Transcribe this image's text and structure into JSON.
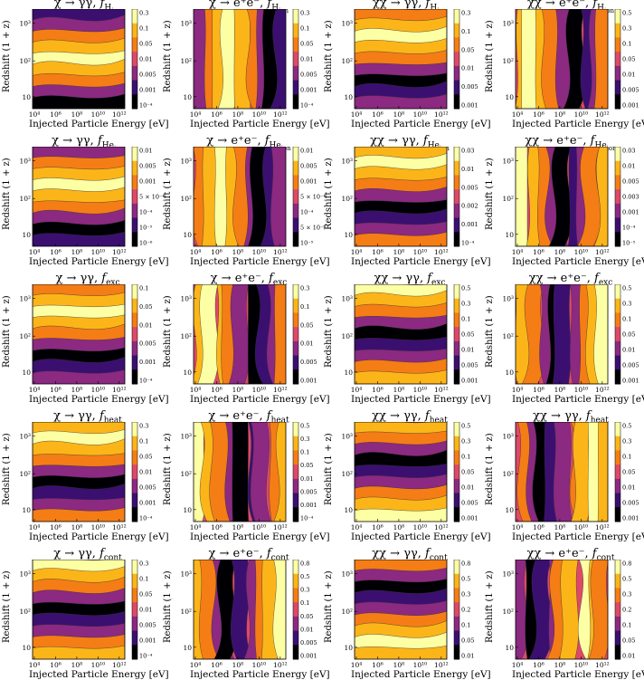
{
  "figure": {
    "x_axis_label": "Injected Particle Energy [eV]",
    "y_axis_label": "Redshift (1 + z)",
    "x_ticks": [
      "10⁴",
      "10⁶",
      "10⁸",
      "10¹⁰",
      "10¹²"
    ],
    "y_ticks": [
      "10",
      "10²",
      "10³"
    ]
  },
  "colors": {
    "colormap": [
      "#000004",
      "#3b0f70",
      "#8c2981",
      "#de4968",
      "#f57d15",
      "#fcb519",
      "#fcffa4"
    ]
  },
  "chart_data": [
    {
      "type": "heatmap",
      "row": 0,
      "col": 0,
      "process": "χ → γγ,",
      "fraction": "f",
      "fraction_sub": "H",
      "fraction_subsub": "ion",
      "colorbar_ticks": [
        "0.3",
        "0.1",
        "0.05",
        "0.01",
        "0.005",
        "0.001",
        "10⁻⁴"
      ],
      "xlim": [
        10000,
        10000000000000.0
      ],
      "ylim": [
        4,
        3000
      ]
    },
    {
      "type": "heatmap",
      "row": 0,
      "col": 1,
      "process": "χ → e⁺e⁻,",
      "fraction": "f",
      "fraction_sub": "H",
      "fraction_subsub": "ion",
      "colorbar_ticks": [
        "0.3",
        "0.1",
        "0.05",
        "0.01",
        "0.005",
        "0.001",
        "10⁻⁴"
      ],
      "xlim": [
        10000,
        10000000000000.0
      ],
      "ylim": [
        4,
        3000
      ]
    },
    {
      "type": "heatmap",
      "row": 0,
      "col": 2,
      "process": "χχ → γγ,",
      "fraction": "f",
      "fraction_sub": "H",
      "fraction_subsub": "ion",
      "colorbar_ticks": [
        "0.3",
        "0.1",
        "0.05",
        "0.01",
        "0.005",
        "0.001"
      ],
      "xlim": [
        10000,
        10000000000000.0
      ],
      "ylim": [
        4,
        3000
      ]
    },
    {
      "type": "heatmap",
      "row": 0,
      "col": 3,
      "process": "χχ → e⁺e⁻,",
      "fraction": "f",
      "fraction_sub": "H",
      "fraction_subsub": "ion",
      "colorbar_ticks": [
        "0.5",
        "0.3",
        "0.1",
        "0.05",
        "0.01",
        "0.005",
        "0.001"
      ],
      "xlim": [
        10000,
        10000000000000.0
      ],
      "ylim": [
        4,
        3000
      ]
    },
    {
      "type": "heatmap",
      "row": 1,
      "col": 0,
      "process": "χ → γγ,",
      "fraction": "f",
      "fraction_sub": "He",
      "fraction_subsub": "ion",
      "colorbar_ticks": [
        "0.01",
        "0.005",
        "0.001",
        "5 × 10⁻⁴",
        "10⁻⁴",
        "10⁻⁵",
        "10⁻⁶"
      ],
      "xlim": [
        10000,
        10000000000000.0
      ],
      "ylim": [
        4,
        3000
      ]
    },
    {
      "type": "heatmap",
      "row": 1,
      "col": 1,
      "process": "χ → e⁺e⁻,",
      "fraction": "f",
      "fraction_sub": "He",
      "fraction_subsub": "ion",
      "colorbar_ticks": [
        "0.01",
        "0.005",
        "0.001",
        "5 × 10⁻⁴",
        "10⁻⁴",
        "5 × 10⁻⁵",
        "10⁻⁵"
      ],
      "xlim": [
        10000,
        10000000000000.0
      ],
      "ylim": [
        4,
        3000
      ]
    },
    {
      "type": "heatmap",
      "row": 1,
      "col": 2,
      "process": "χχ → γγ,",
      "fraction": "f",
      "fraction_sub": "He",
      "fraction_subsub": "ion",
      "colorbar_ticks": [
        "0.03",
        "0.01",
        "0.005",
        "0.002",
        "0.001",
        "10⁻⁴"
      ],
      "xlim": [
        10000,
        10000000000000.0
      ],
      "ylim": [
        4,
        3000
      ]
    },
    {
      "type": "heatmap",
      "row": 1,
      "col": 3,
      "process": "χχ → e⁺e⁻,",
      "fraction": "f",
      "fraction_sub": "He",
      "fraction_subsub": "ion",
      "colorbar_ticks": [
        "0.03",
        "0.01",
        "0.005",
        "0.003",
        "0.001",
        "10⁻⁴",
        "10⁻⁵"
      ],
      "xlim": [
        10000,
        10000000000000.0
      ],
      "ylim": [
        4,
        3000
      ]
    },
    {
      "type": "heatmap",
      "row": 2,
      "col": 0,
      "process": "χ → γγ,",
      "fraction": "f",
      "fraction_sub": "exc",
      "fraction_subsub": "",
      "colorbar_ticks": [
        "0.1",
        "0.05",
        "0.01",
        "0.005",
        "0.001",
        "10⁻⁴"
      ],
      "xlim": [
        10000,
        10000000000000.0
      ],
      "ylim": [
        4,
        3000
      ]
    },
    {
      "type": "heatmap",
      "row": 2,
      "col": 1,
      "process": "χ → e⁺e⁻,",
      "fraction": "f",
      "fraction_sub": "exc",
      "fraction_subsub": "",
      "colorbar_ticks": [
        "0.3",
        "0.1",
        "0.05",
        "0.01",
        "0.005",
        "0.001"
      ],
      "xlim": [
        10000,
        10000000000000.0
      ],
      "ylim": [
        4,
        3000
      ]
    },
    {
      "type": "heatmap",
      "row": 2,
      "col": 2,
      "process": "χχ → γγ,",
      "fraction": "f",
      "fraction_sub": "exc",
      "fraction_subsub": "",
      "colorbar_ticks": [
        "0.5",
        "0.3",
        "0.1",
        "0.05",
        "0.01",
        "0.005",
        "0.001"
      ],
      "xlim": [
        10000,
        10000000000000.0
      ],
      "ylim": [
        4,
        3000
      ]
    },
    {
      "type": "heatmap",
      "row": 2,
      "col": 3,
      "process": "χχ → e⁺e⁻,",
      "fraction": "f",
      "fraction_sub": "exc",
      "fraction_subsub": "",
      "colorbar_ticks": [
        "0.5",
        "0.3",
        "0.1",
        "0.05",
        "0.01",
        "0.005",
        "0.001"
      ],
      "xlim": [
        10000,
        10000000000000.0
      ],
      "ylim": [
        4,
        3000
      ]
    },
    {
      "type": "heatmap",
      "row": 3,
      "col": 0,
      "process": "χ → γγ,",
      "fraction": "f",
      "fraction_sub": "heat",
      "fraction_subsub": "",
      "colorbar_ticks": [
        "0.3",
        "0.1",
        "0.05",
        "0.01",
        "0.005",
        "0.001",
        "10⁻⁴"
      ],
      "xlim": [
        10000,
        10000000000000.0
      ],
      "ylim": [
        4,
        3000
      ]
    },
    {
      "type": "heatmap",
      "row": 3,
      "col": 1,
      "process": "χ → e⁺e⁻,",
      "fraction": "f",
      "fraction_sub": "heat",
      "fraction_subsub": "",
      "colorbar_ticks": [
        "0.5",
        "0.3",
        "0.1",
        "0.05",
        "0.01",
        "0.005",
        "0.001",
        "10⁻⁴"
      ],
      "xlim": [
        10000,
        10000000000000.0
      ],
      "ylim": [
        4,
        3000
      ]
    },
    {
      "type": "heatmap",
      "row": 3,
      "col": 2,
      "process": "χχ → γγ,",
      "fraction": "f",
      "fraction_sub": "heat",
      "fraction_subsub": "",
      "colorbar_ticks": [
        "0.5",
        "0.3",
        "0.1",
        "0.05",
        "0.01",
        "0.005",
        "0.001"
      ],
      "xlim": [
        10000,
        10000000000000.0
      ],
      "ylim": [
        4,
        3000
      ]
    },
    {
      "type": "heatmap",
      "row": 3,
      "col": 3,
      "process": "χχ → γγ,",
      "fraction": "f",
      "fraction_sub": "heat",
      "fraction_subsub": "",
      "colorbar_ticks": [
        "0.5",
        "0.3",
        "0.1",
        "0.05",
        "0.01",
        "0.005",
        "0.001"
      ],
      "xlim": [
        10000,
        10000000000000.0
      ],
      "ylim": [
        4,
        3000
      ]
    },
    {
      "type": "heatmap",
      "row": 4,
      "col": 0,
      "process": "χ → γγ,",
      "fraction": "f",
      "fraction_sub": "cont",
      "fraction_subsub": "",
      "colorbar_ticks": [
        "0.3",
        "0.1",
        "0.05",
        "0.01",
        "0.005",
        "0.001",
        "10⁻⁴"
      ],
      "xlim": [
        10000,
        10000000000000.0
      ],
      "ylim": [
        4,
        3000
      ]
    },
    {
      "type": "heatmap",
      "row": 4,
      "col": 1,
      "process": "χ → e⁺e⁻,",
      "fraction": "f",
      "fraction_sub": "cont",
      "fraction_subsub": "",
      "colorbar_ticks": [
        "0.8",
        "0.5",
        "0.3",
        "0.1",
        "0.05",
        "0.01",
        "0.005",
        "0.001"
      ],
      "xlim": [
        10000,
        10000000000000.0
      ],
      "ylim": [
        4,
        3000
      ]
    },
    {
      "type": "heatmap",
      "row": 4,
      "col": 2,
      "process": "χχ → γγ,",
      "fraction": "f",
      "fraction_sub": "cont",
      "fraction_subsub": "",
      "colorbar_ticks": [
        "0.8",
        "0.5",
        "0.3",
        "0.2",
        "0.1",
        "0.05",
        "0.01"
      ],
      "xlim": [
        10000,
        10000000000000.0
      ],
      "ylim": [
        4,
        3000
      ]
    },
    {
      "type": "heatmap",
      "row": 4,
      "col": 3,
      "process": "χχ → e⁺e⁻,",
      "fraction": "f",
      "fraction_sub": "cont",
      "fraction_subsub": "",
      "colorbar_ticks": [
        "0.8",
        "0.5",
        "0.3",
        "0.2",
        "0.1",
        "0.05",
        "0.01"
      ],
      "xlim": [
        10000,
        10000000000000.0
      ],
      "ylim": [
        4,
        3000
      ]
    }
  ]
}
